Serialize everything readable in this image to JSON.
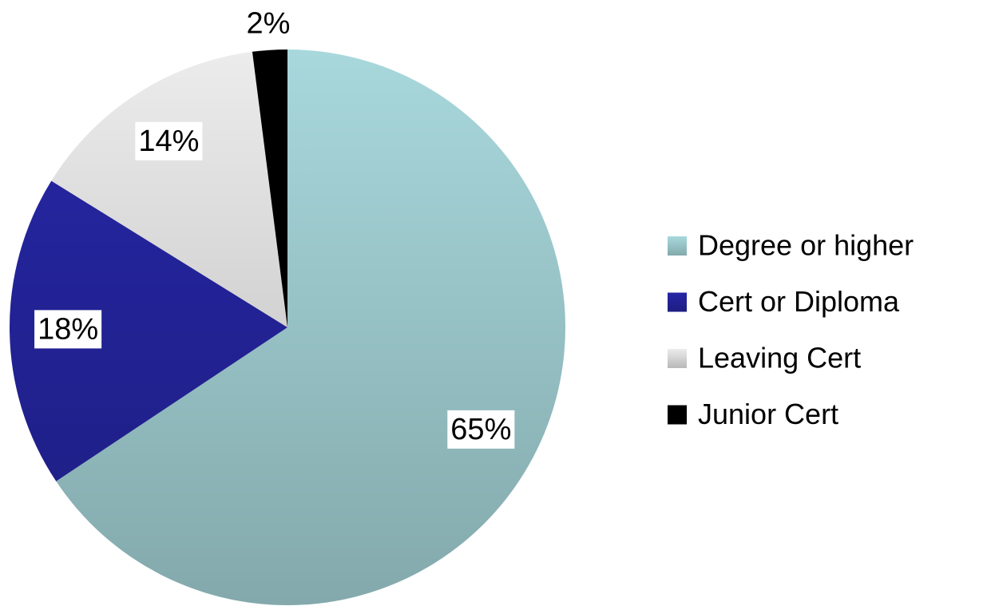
{
  "chart_data": {
    "type": "pie",
    "categories": [
      "Degree or higher",
      "Cert or Diploma",
      "Leaving Cert",
      "Junior Cert"
    ],
    "values": [
      65,
      18,
      14,
      2
    ],
    "value_labels": [
      "65%",
      "18%",
      "14%",
      "2%"
    ],
    "colors": [
      "#a8d8dc",
      "#2626a6",
      "#ececec",
      "#000000"
    ],
    "legend": "right"
  }
}
